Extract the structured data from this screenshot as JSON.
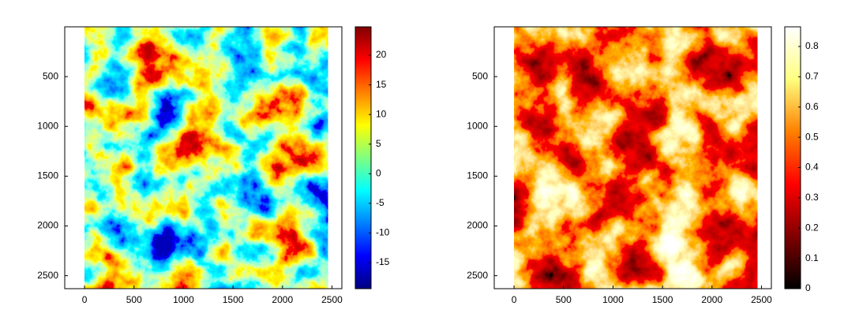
{
  "chart_data": [
    {
      "type": "heatmap",
      "colormap": "jet",
      "xlim": [
        -200,
        2600
      ],
      "xticks": [
        0,
        500,
        1000,
        1500,
        2000,
        2500
      ],
      "ylim": [
        0,
        2630
      ],
      "y_reversed": true,
      "yticks": [
        500,
        1000,
        1500,
        2000,
        2500
      ],
      "clim": [
        -19.4,
        24.8
      ],
      "cticks": [
        -15,
        -10,
        -5,
        0,
        5,
        10,
        15,
        20
      ]
    },
    {
      "type": "heatmap",
      "colormap": "hot",
      "xlim": [
        -200,
        2600
      ],
      "xticks": [
        0,
        500,
        1000,
        1500,
        2000,
        2500
      ],
      "ylim": [
        0,
        2630
      ],
      "y_reversed": true,
      "yticks": [
        500,
        1000,
        1500,
        2000,
        2500
      ],
      "clim": [
        0,
        0.865
      ],
      "cticks": [
        0,
        0.1,
        0.2,
        0.3,
        0.4,
        0.5,
        0.6,
        0.7,
        0.8
      ]
    }
  ]
}
